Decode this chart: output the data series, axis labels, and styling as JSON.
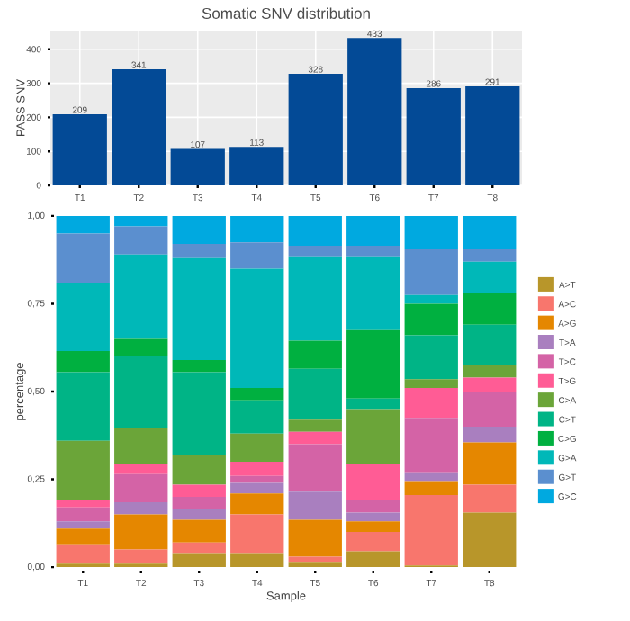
{
  "chart_data": [
    {
      "type": "bar",
      "title": "Somatic SNV distribution",
      "ylabel": "PASS SNV",
      "categories": [
        "T1",
        "T2",
        "T3",
        "T4",
        "T5",
        "T6",
        "T7",
        "T8"
      ],
      "values": [
        209,
        341,
        107,
        113,
        328,
        433,
        286,
        291
      ],
      "color": "#034a96",
      "data_labels": true,
      "ylim": [
        0,
        455
      ],
      "yticks": [
        0,
        100,
        200,
        300,
        400
      ],
      "grid": true
    },
    {
      "type": "bar",
      "stacked": true,
      "xlabel": "Sample",
      "ylabel": "percentage",
      "categories": [
        "T1",
        "T2",
        "T3",
        "T4",
        "T5",
        "T6",
        "T7",
        "T8"
      ],
      "legend": "right",
      "ylim": [
        -0.01,
        1.01
      ],
      "yticks": [
        {
          "value": 0,
          "label": "0,00"
        },
        {
          "value": 0.25,
          "label": "0,25"
        },
        {
          "value": 0.5,
          "label": "0,50"
        },
        {
          "value": 0.75,
          "label": "0,75"
        },
        {
          "value": 1,
          "label": "1,00"
        }
      ],
      "series": [
        {
          "name": "A>T",
          "color": "#b8962a",
          "values": [
            0.01,
            0.01,
            0.04,
            0.04,
            0.015,
            0.045,
            0.005,
            0.155
          ]
        },
        {
          "name": "A>C",
          "color": "#f8766d",
          "values": [
            0.055,
            0.04,
            0.03,
            0.11,
            0.015,
            0.055,
            0.2,
            0.08
          ]
        },
        {
          "name": "A>G",
          "color": "#e58700",
          "values": [
            0.045,
            0.1,
            0.065,
            0.06,
            0.105,
            0.03,
            0.04,
            0.12
          ]
        },
        {
          "name": "T>A",
          "color": "#a97fbf",
          "values": [
            0.02,
            0.035,
            0.03,
            0.03,
            0.08,
            0.025,
            0.025,
            0.045
          ]
        },
        {
          "name": "T>C",
          "color": "#d463a6",
          "values": [
            0.04,
            0.08,
            0.035,
            0.02,
            0.135,
            0.035,
            0.155,
            0.1
          ]
        },
        {
          "name": "T>G",
          "color": "#ff5c95",
          "values": [
            0.02,
            0.03,
            0.035,
            0.04,
            0.035,
            0.105,
            0.085,
            0.04
          ]
        },
        {
          "name": "C>A",
          "color": "#6ba539",
          "values": [
            0.17,
            0.1,
            0.085,
            0.08,
            0.035,
            0.155,
            0.025,
            0.035
          ]
        },
        {
          "name": "C>T",
          "color": "#00b486",
          "values": [
            0.195,
            0.205,
            0.235,
            0.095,
            0.145,
            0.03,
            0.125,
            0.115
          ]
        },
        {
          "name": "C>G",
          "color": "#00b040",
          "values": [
            0.06,
            0.05,
            0.035,
            0.035,
            0.08,
            0.195,
            0.09,
            0.09
          ]
        },
        {
          "name": "G>A",
          "color": "#00b8b8",
          "values": [
            0.195,
            0.24,
            0.29,
            0.34,
            0.24,
            0.21,
            0.025,
            0.09
          ]
        },
        {
          "name": "G>T",
          "color": "#5b8fcf",
          "values": [
            0.14,
            0.08,
            0.04,
            0.075,
            0.03,
            0.03,
            0.13,
            0.035
          ]
        },
        {
          "name": "G>C",
          "color": "#00a9e0",
          "values": [
            0.05,
            0.03,
            0.08,
            0.075,
            0.085,
            0.085,
            0.095,
            0.095
          ]
        }
      ]
    }
  ]
}
